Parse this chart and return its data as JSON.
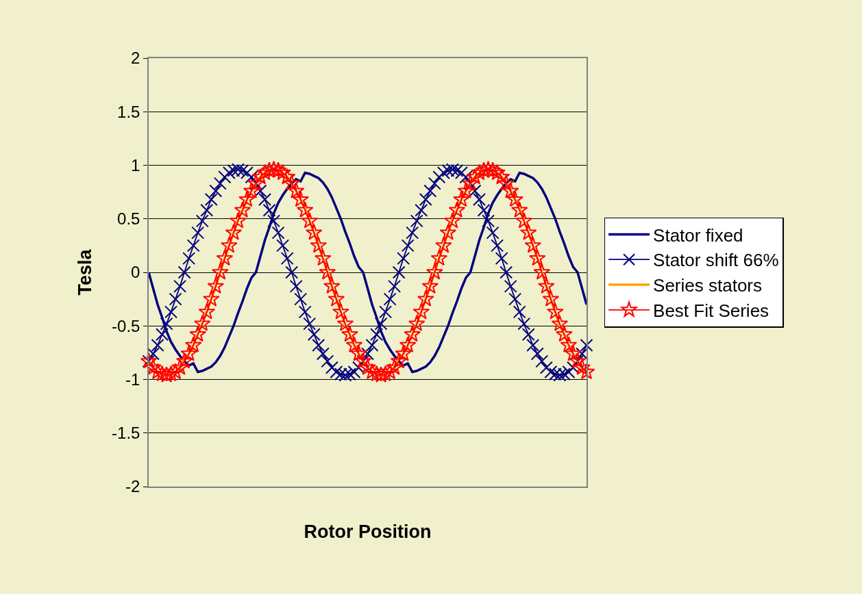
{
  "chart_data": {
    "type": "line",
    "xlabel": "Rotor Position",
    "ylabel": "Tesla",
    "categories": [
      null,
      null,
      null,
      null,
      null,
      null,
      null,
      null,
      null,
      null,
      null,
      null,
      null,
      null,
      null,
      null,
      null,
      null,
      null,
      null,
      null,
      null,
      null,
      null,
      null,
      null,
      null,
      null,
      null,
      null,
      null,
      null,
      null,
      null,
      null,
      null,
      null,
      null,
      null,
      null,
      null,
      null,
      null,
      null,
      null,
      null,
      null,
      null,
      null,
      null,
      null,
      null,
      null,
      null,
      null,
      null,
      null,
      null,
      null,
      null,
      null,
      null,
      null,
      null,
      null,
      null,
      null,
      null,
      null,
      null,
      null,
      null,
      null,
      null,
      null,
      null,
      null,
      null,
      null,
      null,
      null,
      null,
      null,
      null,
      null,
      null,
      null,
      null,
      null,
      null,
      null,
      null,
      null,
      null,
      null,
      null,
      null,
      null,
      null
    ],
    "ylim": [
      -2,
      2
    ],
    "yticks": [
      -2,
      -1.5,
      -1,
      -0.5,
      0,
      0.5,
      1,
      1.5,
      2
    ],
    "grid": "y",
    "legend": "right",
    "tick_labels": "y",
    "series": [
      {
        "name": "Stator fixed",
        "color": "#000080",
        "marker": "none",
        "values": [
          0,
          -0.15,
          -0.3,
          -0.42,
          -0.55,
          -0.65,
          -0.72,
          -0.78,
          -0.83,
          -0.87,
          -0.85,
          -0.93,
          -0.92,
          -0.9,
          -0.88,
          -0.84,
          -0.78,
          -0.7,
          -0.6,
          -0.5,
          -0.38,
          -0.27,
          -0.15,
          -0.05,
          0,
          0.15,
          0.3,
          0.42,
          0.55,
          0.65,
          0.72,
          0.78,
          0.83,
          0.87,
          0.85,
          0.93,
          0.92,
          0.9,
          0.88,
          0.84,
          0.78,
          0.7,
          0.6,
          0.5,
          0.38,
          0.27,
          0.15,
          0.05,
          0,
          -0.15,
          -0.3,
          -0.42,
          -0.55,
          -0.65,
          -0.72,
          -0.78,
          -0.83,
          -0.87,
          -0.85,
          -0.93,
          -0.92,
          -0.9,
          -0.88,
          -0.84,
          -0.78,
          -0.7,
          -0.6,
          -0.5,
          -0.38,
          -0.27,
          -0.15,
          -0.05,
          0,
          0.15,
          0.3,
          0.42,
          0.55,
          0.65,
          0.72,
          0.78,
          0.83,
          0.87,
          0.85,
          0.93,
          0.92,
          0.9,
          0.88,
          0.84,
          0.78,
          0.7,
          0.6,
          0.5,
          0.38,
          0.27,
          0.15,
          0.05,
          0,
          -0.15,
          -0.3
        ]
      },
      {
        "name": "Stator shift 66%",
        "color": "#000080",
        "marker": "cross",
        "values": [
          -0.83,
          -0.76,
          -0.68,
          -0.58,
          -0.48,
          -0.37,
          -0.25,
          -0.13,
          0,
          0.13,
          0.25,
          0.37,
          0.48,
          0.58,
          0.68,
          0.76,
          0.83,
          0.89,
          0.93,
          0.95,
          0.96,
          0.95,
          0.93,
          0.89,
          0.83,
          0.76,
          0.68,
          0.58,
          0.48,
          0.37,
          0.25,
          0.13,
          0,
          -0.13,
          -0.25,
          -0.37,
          -0.48,
          -0.58,
          -0.68,
          -0.76,
          -0.83,
          -0.89,
          -0.93,
          -0.95,
          -0.96,
          -0.95,
          -0.93,
          -0.89,
          -0.83,
          -0.76,
          -0.68,
          -0.58,
          -0.48,
          -0.37,
          -0.25,
          -0.13,
          0,
          0.13,
          0.25,
          0.37,
          0.48,
          0.58,
          0.68,
          0.76,
          0.83,
          0.89,
          0.93,
          0.95,
          0.96,
          0.95,
          0.93,
          0.89,
          0.83,
          0.76,
          0.68,
          0.58,
          0.48,
          0.37,
          0.25,
          0.13,
          0,
          -0.13,
          -0.25,
          -0.37,
          -0.48,
          -0.58,
          -0.68,
          -0.76,
          -0.83,
          -0.89,
          -0.93,
          -0.95,
          -0.96,
          -0.95,
          -0.93,
          -0.89,
          -0.83,
          -0.76,
          -0.68
        ]
      },
      {
        "name": "Series stators",
        "color": "#ffa500",
        "marker": "none",
        "values": [
          -0.83,
          -0.89,
          -0.93,
          -0.95,
          -0.96,
          -0.95,
          -0.93,
          -0.88,
          -0.8,
          -0.76,
          -0.68,
          -0.58,
          -0.48,
          -0.37,
          -0.25,
          -0.13,
          0,
          0.13,
          0.25,
          0.37,
          0.5,
          0.58,
          0.68,
          0.76,
          0.83,
          0.89,
          0.93,
          0.95,
          0.96,
          0.95,
          0.93,
          0.89,
          0.83,
          0.76,
          0.68,
          0.6,
          0.48,
          0.37,
          0.25,
          0.13,
          0,
          -0.13,
          -0.25,
          -0.37,
          -0.5,
          -0.58,
          -0.68,
          -0.76,
          -0.83,
          -0.89,
          -0.93,
          -0.95,
          -0.96,
          -0.95,
          -0.93,
          -0.88,
          -0.8,
          -0.76,
          -0.68,
          -0.58,
          -0.48,
          -0.37,
          -0.25,
          -0.13,
          0,
          0.13,
          0.25,
          0.37,
          0.5,
          0.58,
          0.68,
          0.76,
          0.83,
          0.89,
          0.93,
          0.95,
          0.96,
          0.95,
          0.93,
          0.89,
          0.83,
          0.76,
          0.68,
          0.6,
          0.48,
          0.37,
          0.25,
          0.13,
          0,
          -0.13,
          -0.25,
          -0.37,
          -0.5,
          -0.58,
          -0.68,
          -0.76,
          -0.83,
          -0.89,
          -0.93
        ]
      },
      {
        "name": "Best Fit Series",
        "color": "#ff0000",
        "marker": "star",
        "values": [
          -0.83,
          -0.89,
          -0.93,
          -0.95,
          -0.96,
          -0.95,
          -0.93,
          -0.89,
          -0.83,
          -0.76,
          -0.68,
          -0.58,
          -0.48,
          -0.37,
          -0.25,
          -0.13,
          0,
          0.13,
          0.25,
          0.37,
          0.48,
          0.58,
          0.68,
          0.76,
          0.83,
          0.89,
          0.93,
          0.95,
          0.96,
          0.95,
          0.93,
          0.89,
          0.83,
          0.76,
          0.68,
          0.58,
          0.48,
          0.37,
          0.25,
          0.13,
          0,
          -0.13,
          -0.25,
          -0.37,
          -0.48,
          -0.58,
          -0.68,
          -0.76,
          -0.83,
          -0.89,
          -0.93,
          -0.95,
          -0.96,
          -0.95,
          -0.93,
          -0.89,
          -0.83,
          -0.76,
          -0.68,
          -0.58,
          -0.48,
          -0.37,
          -0.25,
          -0.13,
          0,
          0.13,
          0.25,
          0.37,
          0.48,
          0.58,
          0.68,
          0.76,
          0.83,
          0.89,
          0.93,
          0.95,
          0.96,
          0.95,
          0.93,
          0.89,
          0.83,
          0.76,
          0.68,
          0.58,
          0.48,
          0.37,
          0.25,
          0.13,
          0,
          -0.13,
          -0.25,
          -0.37,
          -0.48,
          -0.58,
          -0.68,
          -0.76,
          -0.83,
          -0.89,
          -0.93
        ]
      }
    ]
  }
}
